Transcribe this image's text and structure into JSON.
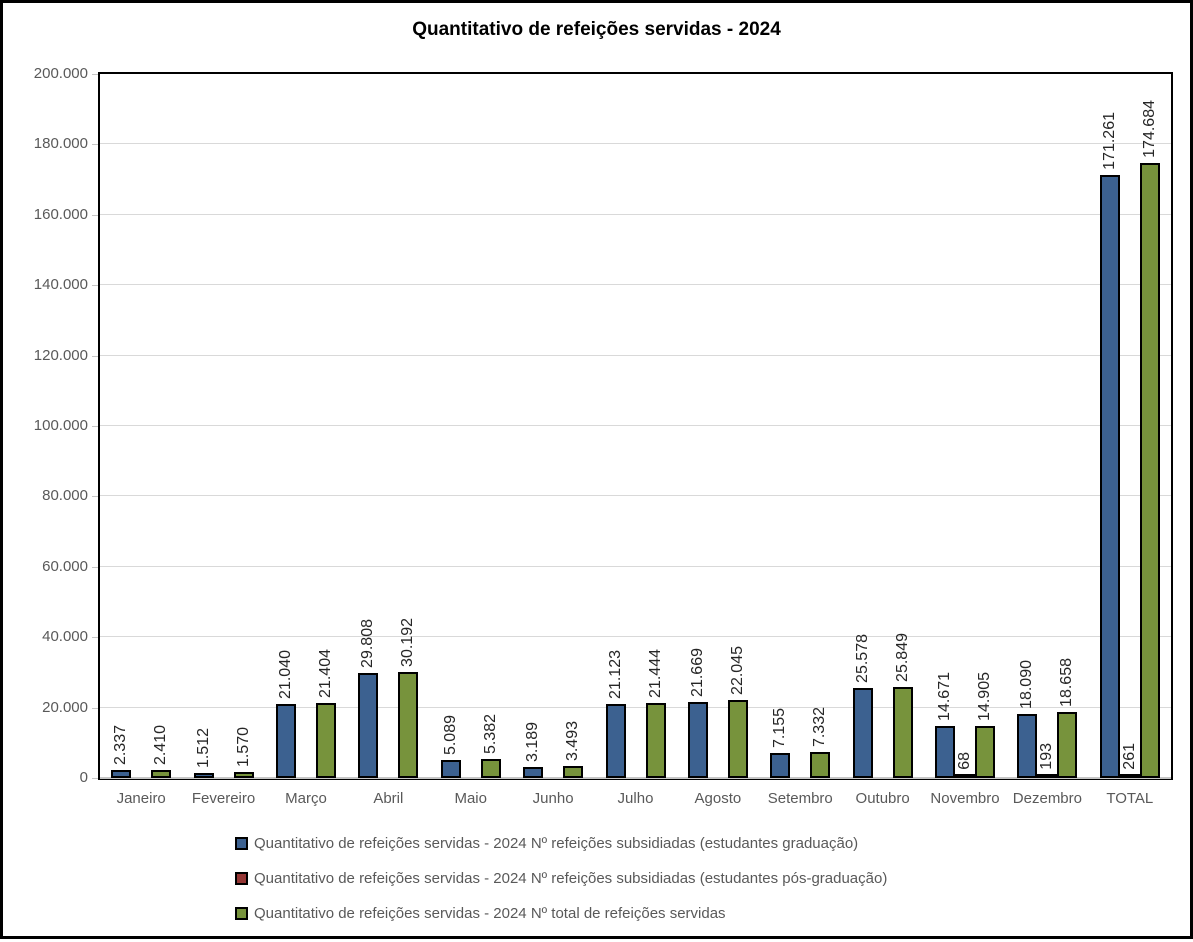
{
  "title": "Quantitativo de refeições servidas - 2024",
  "chart_data": {
    "type": "bar",
    "title": "Quantitativo de refeições servidas - 2024",
    "categories": [
      "Janeiro",
      "Fevereiro",
      "Março",
      "Abril",
      "Maio",
      "Junho",
      "Julho",
      "Agosto",
      "Setembro",
      "Outubro",
      "Novembro",
      "Dezembro",
      "TOTAL"
    ],
    "series": [
      {
        "name": "Quantitativo de refeições servidas - 2024 Nº refeições subsidiadas (estudantes graduação)",
        "color": "#3C6190",
        "values": [
          2337,
          1512,
          21040,
          29808,
          5089,
          3189,
          21123,
          21669,
          7155,
          25578,
          14671,
          18090,
          171261
        ],
        "labels": [
          "2.337",
          "1.512",
          "21.040",
          "29.808",
          "5.089",
          "3.189",
          "21.123",
          "21.669",
          "7.155",
          "25.578",
          "14.671",
          "18.090",
          "171.261"
        ]
      },
      {
        "name": "Quantitativo de refeições servidas - 2024 Nº refeições subsidiadas (estudantes pós-graduação)",
        "color": "#953735",
        "values": [
          0,
          0,
          0,
          0,
          0,
          0,
          0,
          0,
          0,
          0,
          68,
          193,
          261
        ],
        "labels": [
          "",
          "",
          "",
          "",
          "",
          "",
          "",
          "",
          "",
          "",
          "68",
          "193",
          "261"
        ]
      },
      {
        "name": "Quantitativo de refeições servidas - 2024 Nº total de refeições servidas",
        "color": "#77933C",
        "values": [
          2410,
          1570,
          21404,
          30192,
          5382,
          3493,
          21444,
          22045,
          7332,
          25849,
          14905,
          18658,
          174684
        ],
        "labels": [
          "2.410",
          "1.570",
          "21.404",
          "30.192",
          "5.382",
          "3.493",
          "21.444",
          "22.045",
          "7.332",
          "25.849",
          "14.905",
          "18.658",
          "174.684"
        ]
      }
    ],
    "ylim": [
      0,
      200000
    ],
    "yticks": [
      {
        "value": 0,
        "label": "0"
      },
      {
        "value": 20000,
        "label": "20.000"
      },
      {
        "value": 40000,
        "label": "40.000"
      },
      {
        "value": 60000,
        "label": "60.000"
      },
      {
        "value": 80000,
        "label": "80.000"
      },
      {
        "value": 100000,
        "label": "100.000"
      },
      {
        "value": 120000,
        "label": "120.000"
      },
      {
        "value": 140000,
        "label": "140.000"
      },
      {
        "value": 160000,
        "label": "160.000"
      },
      {
        "value": 180000,
        "label": "180.000"
      },
      {
        "value": 200000,
        "label": "200.000"
      }
    ],
    "grid": true,
    "legend_position": "bottom",
    "colors": {
      "bar_outline": "#000000",
      "gridline": "#D9D9D9",
      "baseline": "#C6C6C6",
      "axis_text": "#595959",
      "data_label_text": "#262626",
      "frame_border": "#000000"
    }
  }
}
